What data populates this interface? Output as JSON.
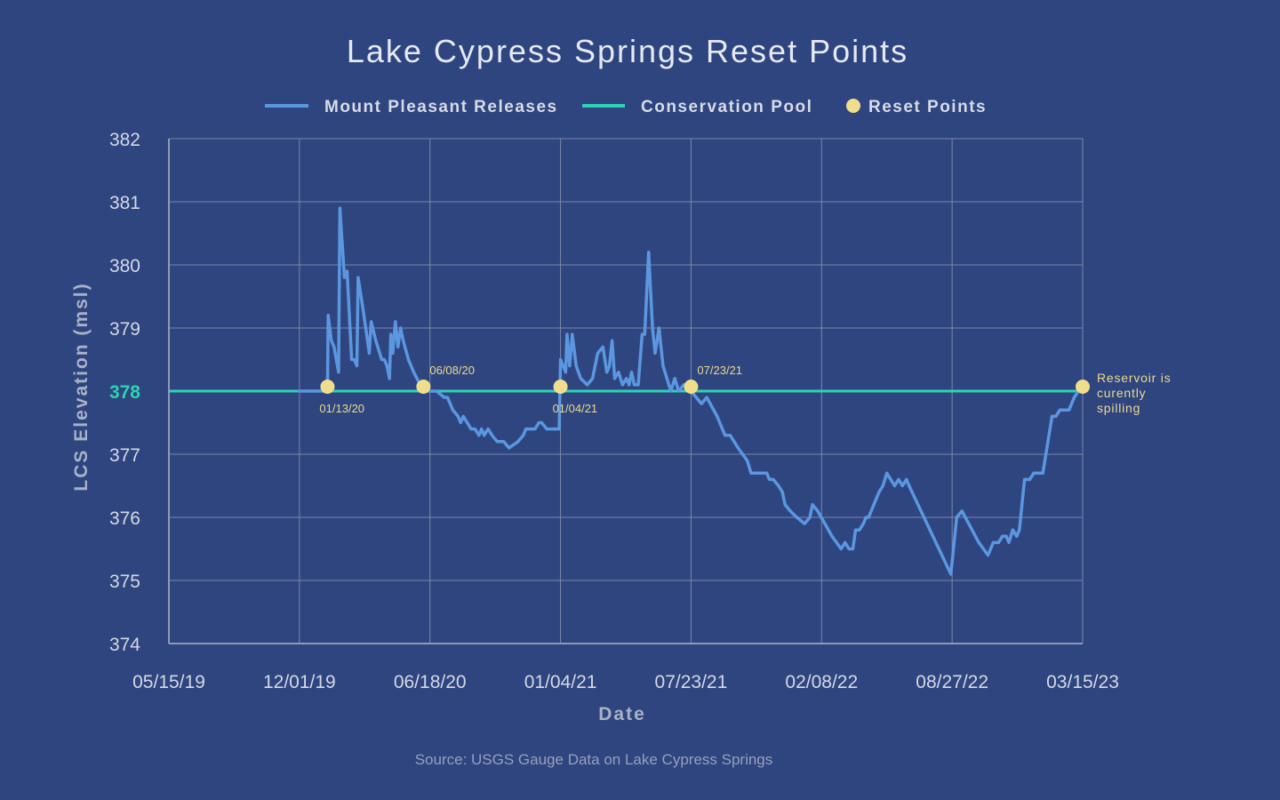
{
  "chart_data": {
    "type": "line",
    "title": "Lake Cypress Springs Reset Points",
    "xlabel": "Date",
    "ylabel": "LCS Elevation (msl)",
    "source": "Source: USGS Gauge Data on Lake Cypress Springs",
    "ylim": [
      374,
      382
    ],
    "yticks": [
      "374",
      "375",
      "376",
      "377",
      "378",
      "379",
      "380",
      "381",
      "382"
    ],
    "highlight_ytick": "378",
    "xlim": [
      "2019-05-15",
      "2023-03-15"
    ],
    "xticks": [
      {
        "date": "2019-05-15",
        "label": "05/15/19"
      },
      {
        "date": "2019-12-01",
        "label": "12/01/19"
      },
      {
        "date": "2020-06-18",
        "label": "06/18/20"
      },
      {
        "date": "2021-01-04",
        "label": "01/04/21"
      },
      {
        "date": "2021-07-23",
        "label": "07/23/21"
      },
      {
        "date": "2022-02-08",
        "label": "02/08/22"
      },
      {
        "date": "2022-08-27",
        "label": "08/27/22"
      },
      {
        "date": "2023-03-15",
        "label": "03/15/23"
      }
    ],
    "grid": true,
    "legend_position": "top",
    "series": [
      {
        "name": "Mount Pleasant Releases",
        "color": "#5b97e0",
        "points": [
          [
            "2019-12-01",
            378.0
          ],
          [
            "2020-01-13",
            378.0
          ],
          [
            "2020-01-14",
            379.2
          ],
          [
            "2020-01-19",
            378.8
          ],
          [
            "2020-01-23",
            378.7
          ],
          [
            "2020-01-30",
            378.3
          ],
          [
            "2020-02-01",
            380.9
          ],
          [
            "2020-02-08",
            379.8
          ],
          [
            "2020-02-12",
            379.9
          ],
          [
            "2020-02-19",
            378.5
          ],
          [
            "2020-02-23",
            378.5
          ],
          [
            "2020-02-27",
            378.4
          ],
          [
            "2020-02-29",
            379.8
          ],
          [
            "2020-03-06",
            379.4
          ],
          [
            "2020-03-13",
            378.9
          ],
          [
            "2020-03-17",
            378.6
          ],
          [
            "2020-03-20",
            379.1
          ],
          [
            "2020-03-27",
            378.8
          ],
          [
            "2020-04-05",
            378.5
          ],
          [
            "2020-04-09",
            378.5
          ],
          [
            "2020-04-13",
            378.4
          ],
          [
            "2020-04-17",
            378.2
          ],
          [
            "2020-04-19",
            378.9
          ],
          [
            "2020-04-22",
            378.6
          ],
          [
            "2020-04-26",
            379.1
          ],
          [
            "2020-04-30",
            378.7
          ],
          [
            "2020-05-04",
            379.0
          ],
          [
            "2020-05-08",
            378.8
          ],
          [
            "2020-05-16",
            378.5
          ],
          [
            "2020-05-24",
            378.3
          ],
          [
            "2020-06-08",
            378.0
          ],
          [
            "2020-06-12",
            378.0
          ],
          [
            "2020-06-28",
            378.0
          ],
          [
            "2020-07-10",
            377.9
          ],
          [
            "2020-07-15",
            377.9
          ],
          [
            "2020-07-23",
            377.7
          ],
          [
            "2020-07-31",
            377.6
          ],
          [
            "2020-08-04",
            377.5
          ],
          [
            "2020-08-08",
            377.6
          ],
          [
            "2020-08-14",
            377.5
          ],
          [
            "2020-08-20",
            377.4
          ],
          [
            "2020-08-26",
            377.4
          ],
          [
            "2020-09-01",
            377.3
          ],
          [
            "2020-09-05",
            377.4
          ],
          [
            "2020-09-09",
            377.3
          ],
          [
            "2020-09-15",
            377.4
          ],
          [
            "2020-09-21",
            377.3
          ],
          [
            "2020-09-29",
            377.2
          ],
          [
            "2020-10-09",
            377.2
          ],
          [
            "2020-10-17",
            377.1
          ],
          [
            "2020-10-31",
            377.2
          ],
          [
            "2020-11-08",
            377.3
          ],
          [
            "2020-11-12",
            377.4
          ],
          [
            "2020-11-18",
            377.4
          ],
          [
            "2020-11-26",
            377.4
          ],
          [
            "2020-12-02",
            377.5
          ],
          [
            "2020-12-06",
            377.5
          ],
          [
            "2020-12-14",
            377.4
          ],
          [
            "2020-12-24",
            377.4
          ],
          [
            "2021-01-02",
            377.4
          ],
          [
            "2021-01-04",
            378.5
          ],
          [
            "2021-01-08",
            378.4
          ],
          [
            "2021-01-12",
            378.3
          ],
          [
            "2021-01-14",
            378.9
          ],
          [
            "2021-01-18",
            378.4
          ],
          [
            "2021-01-22",
            378.9
          ],
          [
            "2021-01-28",
            378.4
          ],
          [
            "2021-02-04",
            378.2
          ],
          [
            "2021-02-14",
            378.1
          ],
          [
            "2021-02-22",
            378.2
          ],
          [
            "2021-03-02",
            378.6
          ],
          [
            "2021-03-10",
            378.7
          ],
          [
            "2021-03-16",
            378.3
          ],
          [
            "2021-03-20",
            378.4
          ],
          [
            "2021-03-24",
            378.8
          ],
          [
            "2021-03-28",
            378.2
          ],
          [
            "2021-04-03",
            378.3
          ],
          [
            "2021-04-09",
            378.1
          ],
          [
            "2021-04-15",
            378.2
          ],
          [
            "2021-04-19",
            378.1
          ],
          [
            "2021-04-23",
            378.3
          ],
          [
            "2021-04-27",
            378.1
          ],
          [
            "2021-05-03",
            378.1
          ],
          [
            "2021-05-09",
            378.9
          ],
          [
            "2021-05-13",
            378.9
          ],
          [
            "2021-05-19",
            380.2
          ],
          [
            "2021-05-25",
            379.0
          ],
          [
            "2021-05-29",
            378.6
          ],
          [
            "2021-06-04",
            379.0
          ],
          [
            "2021-06-10",
            378.4
          ],
          [
            "2021-06-16",
            378.2
          ],
          [
            "2021-06-22",
            378.0
          ],
          [
            "2021-06-28",
            378.2
          ],
          [
            "2021-07-04",
            378.0
          ],
          [
            "2021-07-12",
            378.1
          ],
          [
            "2021-07-23",
            378.0
          ],
          [
            "2021-08-08",
            377.8
          ],
          [
            "2021-08-16",
            377.9
          ],
          [
            "2021-09-01",
            377.6
          ],
          [
            "2021-09-13",
            377.3
          ],
          [
            "2021-09-21",
            377.3
          ],
          [
            "2021-10-03",
            377.1
          ],
          [
            "2021-10-17",
            376.9
          ],
          [
            "2021-10-23",
            376.7
          ],
          [
            "2021-11-02",
            376.7
          ],
          [
            "2021-11-10",
            376.7
          ],
          [
            "2021-11-16",
            376.7
          ],
          [
            "2021-11-20",
            376.6
          ],
          [
            "2021-11-26",
            376.6
          ],
          [
            "2021-12-04",
            376.5
          ],
          [
            "2021-12-10",
            376.4
          ],
          [
            "2021-12-14",
            376.2
          ],
          [
            "2021-12-22",
            376.1
          ],
          [
            "2022-01-01",
            376.0
          ],
          [
            "2022-01-13",
            375.9
          ],
          [
            "2022-01-21",
            376.0
          ],
          [
            "2022-01-25",
            376.2
          ],
          [
            "2022-02-02",
            376.1
          ],
          [
            "2022-02-24",
            375.7
          ],
          [
            "2022-03-10",
            375.5
          ],
          [
            "2022-03-16",
            375.6
          ],
          [
            "2022-03-22",
            375.5
          ],
          [
            "2022-03-28",
            375.5
          ],
          [
            "2022-04-01",
            375.8
          ],
          [
            "2022-04-07",
            375.8
          ],
          [
            "2022-04-13",
            375.9
          ],
          [
            "2022-04-17",
            376.0
          ],
          [
            "2022-04-21",
            376.0
          ],
          [
            "2022-04-25",
            376.1
          ],
          [
            "2022-04-29",
            376.2
          ],
          [
            "2022-05-03",
            376.3
          ],
          [
            "2022-05-07",
            376.4
          ],
          [
            "2022-05-13",
            376.5
          ],
          [
            "2022-05-19",
            376.7
          ],
          [
            "2022-05-25",
            376.6
          ],
          [
            "2022-05-31",
            376.5
          ],
          [
            "2022-06-06",
            376.6
          ],
          [
            "2022-06-12",
            376.5
          ],
          [
            "2022-06-18",
            376.6
          ],
          [
            "2022-06-22",
            376.5
          ],
          [
            "2022-08-25",
            375.1
          ],
          [
            "2022-09-03",
            376.0
          ],
          [
            "2022-09-11",
            376.1
          ],
          [
            "2022-10-07",
            375.6
          ],
          [
            "2022-10-21",
            375.4
          ],
          [
            "2022-10-29",
            375.6
          ],
          [
            "2022-11-06",
            375.6
          ],
          [
            "2022-11-12",
            375.7
          ],
          [
            "2022-11-18",
            375.7
          ],
          [
            "2022-11-22",
            375.6
          ],
          [
            "2022-11-28",
            375.8
          ],
          [
            "2022-12-04",
            375.7
          ],
          [
            "2022-12-08",
            375.8
          ],
          [
            "2022-12-16",
            376.6
          ],
          [
            "2022-12-24",
            376.6
          ],
          [
            "2022-12-30",
            376.7
          ],
          [
            "2023-01-13",
            376.7
          ],
          [
            "2023-01-27",
            377.6
          ],
          [
            "2023-02-02",
            377.6
          ],
          [
            "2023-02-08",
            377.7
          ],
          [
            "2023-02-16",
            377.7
          ],
          [
            "2023-02-22",
            377.7
          ],
          [
            "2023-03-02",
            377.9
          ],
          [
            "2023-03-15",
            378.1
          ]
        ]
      },
      {
        "name": "Conservation Pool",
        "color": "#2ed3b3",
        "points": [
          [
            "2019-05-15",
            378.0
          ],
          [
            "2023-03-15",
            378.0
          ]
        ]
      }
    ],
    "reset_points": {
      "name": "Reset Points",
      "color": "#f0de8c",
      "points": [
        {
          "date": "2020-01-13",
          "value": 378.0,
          "label": "01/13/20",
          "label_side": "below"
        },
        {
          "date": "2020-06-08",
          "value": 378.0,
          "label": "06/08/20",
          "label_side": "above"
        },
        {
          "date": "2021-01-04",
          "value": 378.0,
          "label": "01/04/21",
          "label_side": "below"
        },
        {
          "date": "2021-07-23",
          "value": 378.0,
          "label": "07/23/21",
          "label_side": "above"
        },
        {
          "date": "2023-03-15",
          "value": 378.0,
          "label": "",
          "label_side": "right"
        }
      ]
    },
    "annotation": {
      "lines": [
        "Reservoir is",
        "curently",
        "spilling"
      ]
    }
  }
}
